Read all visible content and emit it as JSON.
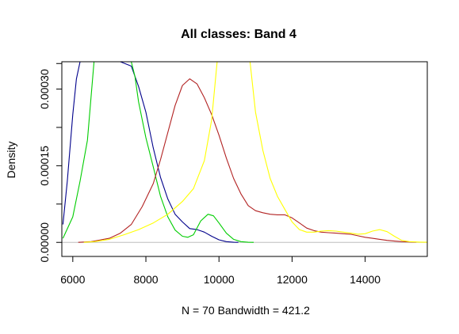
{
  "chart_data": {
    "type": "line",
    "title": "All classes: Band 4",
    "xlabel": "N = 70   Bandwidth = 421.2",
    "ylabel": "Density",
    "xlim": [
      5700,
      15700
    ],
    "ylim": [
      -2.75e-05,
      0.0003535
    ],
    "x_ticks": [
      6000,
      8000,
      10000,
      12000,
      14000
    ],
    "x_tick_labels": [
      "6000",
      "8000",
      "10000",
      "12000",
      "14000"
    ],
    "y_ticks": [
      0.0,
      0.00015,
      0.0003
    ],
    "y_tick_labels": [
      "0.00000",
      "0.00015",
      "0.00030"
    ],
    "y_minor_ticks": [
      0.0,
      7.5e-05,
      0.00015,
      0.000225,
      0.0003,
      0.00035
    ],
    "baseline": 0,
    "baseline_color": "#bebebe",
    "grid": false,
    "legend": "none",
    "series": [
      {
        "color": "#00008b",
        "x": [
          5730,
          5850,
          6000,
          6100,
          6200,
          6210,
          7300,
          7600,
          7800,
          8000,
          8200,
          8400,
          8600,
          8800,
          9000,
          9200,
          9400,
          9600,
          9800,
          10000,
          10200,
          10400,
          10530
        ],
        "y": [
          3.5e-05,
          0.00012,
          0.00025,
          0.00032,
          0.00037,
          0.00038,
          0.00038,
          0.000345,
          0.000305,
          0.000255,
          0.000185,
          0.000127,
          8.5e-05,
          5.5e-05,
          4e-05,
          2.7e-05,
          2.5e-05,
          2e-05,
          1.2e-05,
          5e-06,
          1.5e-06,
          2e-07,
          0.0
        ]
      },
      {
        "color": "#00cd00",
        "x": [
          5730,
          6000,
          6200,
          6400,
          6580,
          7600,
          7700,
          7800,
          8000,
          8200,
          8400,
          8600,
          8800,
          9000,
          9150,
          9300,
          9500,
          9700,
          9850,
          10000,
          10200,
          10400,
          10600,
          10800,
          10950
        ],
        "y": [
          8e-06,
          5e-05,
          0.00012,
          0.0002,
          0.00038,
          0.00038,
          0.000325,
          0.000275,
          0.000205,
          0.000148,
          9e-05,
          5e-05,
          2.4e-05,
          1.2e-05,
          1e-05,
          1.5e-05,
          4.2e-05,
          5.5e-05,
          5.2e-05,
          3.8e-05,
          1.8e-05,
          6e-06,
          1.5e-06,
          3e-07,
          0.0
        ]
      },
      {
        "color": "#b22222",
        "x": [
          6150,
          6500,
          7000,
          7300,
          7600,
          7900,
          8200,
          8400,
          8600,
          8800,
          9000,
          9200,
          9400,
          9600,
          9800,
          10000,
          10200,
          10400,
          10600,
          10800,
          11000,
          11200,
          11400,
          11600,
          11800,
          12000,
          12200,
          12400,
          12600,
          12800,
          13000,
          13200,
          13400,
          13600,
          13800,
          14000,
          14200,
          14400,
          14600,
          14800,
          15000,
          15200,
          15400
        ],
        "y": [
          0.0,
          1.5e-06,
          8e-06,
          1.8e-05,
          3.5e-05,
          7e-05,
          0.000115,
          0.000162,
          0.000215,
          0.000268,
          0.000307,
          0.00032,
          0.00031,
          0.000283,
          0.00025,
          0.00021,
          0.000165,
          0.000125,
          9.5e-05,
          7.2e-05,
          6.2e-05,
          5.8e-05,
          5.5e-05,
          5.4e-05,
          5.4e-05,
          4.8e-05,
          3.8e-05,
          2.8e-05,
          2.3e-05,
          2e-05,
          1.9e-05,
          1.8e-05,
          1.7e-05,
          1.6e-05,
          1.3e-05,
          1e-05,
          8e-06,
          6e-06,
          4e-06,
          2.5e-06,
          1.5e-06,
          8e-07,
          5e-07
        ]
      },
      {
        "color": "#ffff00",
        "x": [
          6300,
          6600,
          7000,
          7400,
          7800,
          8200,
          8600,
          9000,
          9300,
          9600,
          9800,
          9950,
          10850,
          11000,
          11200,
          11400,
          11600,
          11800,
          12000,
          12200,
          12400,
          12600,
          12800,
          13000,
          13200,
          13400,
          13600,
          13800,
          14000,
          14200,
          14400,
          14600,
          14800,
          15000,
          15200,
          15500,
          15700
        ],
        "y": [
          0.0,
          1.5e-06,
          6e-06,
          1.5e-05,
          2.5e-05,
          3.8e-05,
          5.5e-05,
          8e-05,
          0.000105,
          0.00016,
          0.00024,
          0.00038,
          0.00038,
          0.000255,
          0.00018,
          0.000125,
          9e-05,
          6.5e-05,
          4e-05,
          2.5e-05,
          2e-05,
          2e-05,
          2.2e-05,
          2.3e-05,
          2.2e-05,
          2e-05,
          1.8e-05,
          1.6e-05,
          1.7e-05,
          2.2e-05,
          2.5e-05,
          2.1e-05,
          1.2e-05,
          4e-06,
          1.5e-06,
          5e-07,
          3e-07
        ]
      }
    ]
  }
}
